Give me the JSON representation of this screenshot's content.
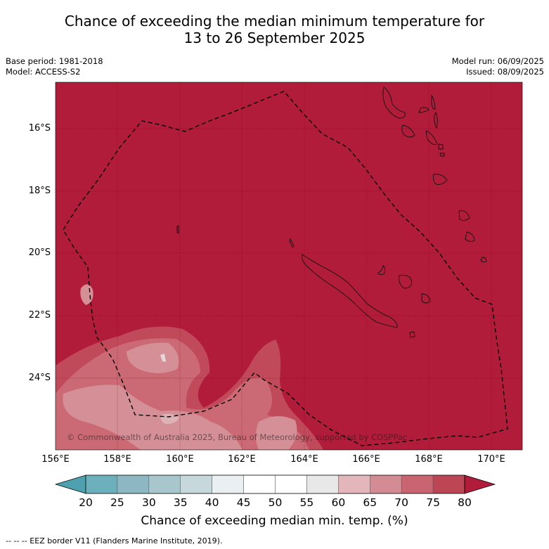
{
  "title_line1": "Chance of exceeding the median minimum temperature for",
  "title_line2": "13 to 26 September 2025",
  "base_period": "Base period: 1981-2018",
  "model": "Model: ACCESS-S2",
  "model_run": "Model run: 06/09/2025",
  "issued": "Issued: 08/09/2025",
  "copyright": "© Commonwealth of Australia 2025, Bureau of Meteorology, supported by COSPPac",
  "lat_labels": [
    "16°S",
    "18°S",
    "20°S",
    "22°S",
    "24°S"
  ],
  "lon_labels": [
    "156°E",
    "158°E",
    "160°E",
    "162°E",
    "164°E",
    "166°E",
    "168°E",
    "170°E"
  ],
  "colorbar": {
    "ticks": [
      "20",
      "25",
      "30",
      "35",
      "40",
      "45",
      "50",
      "55",
      "60",
      "65",
      "70",
      "75",
      "80"
    ],
    "label": "Chance of exceeding median min. temp. (%)",
    "colors": [
      "#4fa0ae",
      "#6cb0bd",
      "#8db8c3",
      "#a8c7cc",
      "#c7d8dc",
      "#eaf0f1",
      "#ffffff",
      "#ffffff",
      "#e8e8e8",
      "#e2b6bb",
      "#d48c94",
      "#c86570",
      "#bd4655",
      "#b11c3a"
    ]
  },
  "footer": "-- -- -- EEZ border V11 (Flanders Marine Institute, 2019).",
  "colors": {
    "base": "#b11c3a",
    "level70_75": "#c14a5a",
    "level65_70": "#cb6a75",
    "level60_65": "#d48f97",
    "level55_60": "#deb3b8"
  }
}
